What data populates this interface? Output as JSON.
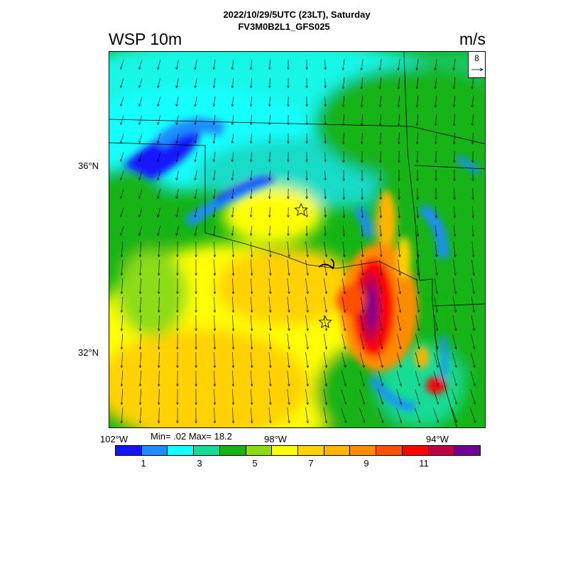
{
  "header": {
    "title_line1": "2022/10/29/5UTC (23LT), Saturday",
    "title_line2": "FV3M0B2L1_GFS025",
    "variable": "WSP 10m",
    "units": "m/s"
  },
  "map": {
    "latitude_labels": [
      "36°N",
      "32°N"
    ],
    "longitude_labels": [
      "102°W",
      "98°W",
      "94°W"
    ],
    "field_stats": "Min= .02 Max= 18.2",
    "reference_vector": {
      "value": "8",
      "icon": "arrow-right-icon"
    },
    "markers": [
      {
        "type": "star",
        "icon": "star-outline-icon"
      },
      {
        "type": "star",
        "icon": "star-outline-icon"
      }
    ]
  },
  "colorbar": {
    "colors": [
      "#1414ff",
      "#1e8cff",
      "#14ffff",
      "#14dc96",
      "#14b414",
      "#8cdc14",
      "#ffff00",
      "#ffd200",
      "#ffb400",
      "#ff8c00",
      "#ff5000",
      "#ff0000",
      "#be0046",
      "#6e0096"
    ],
    "labels": [
      "1",
      "3",
      "5",
      "7",
      "9",
      "11"
    ]
  }
}
